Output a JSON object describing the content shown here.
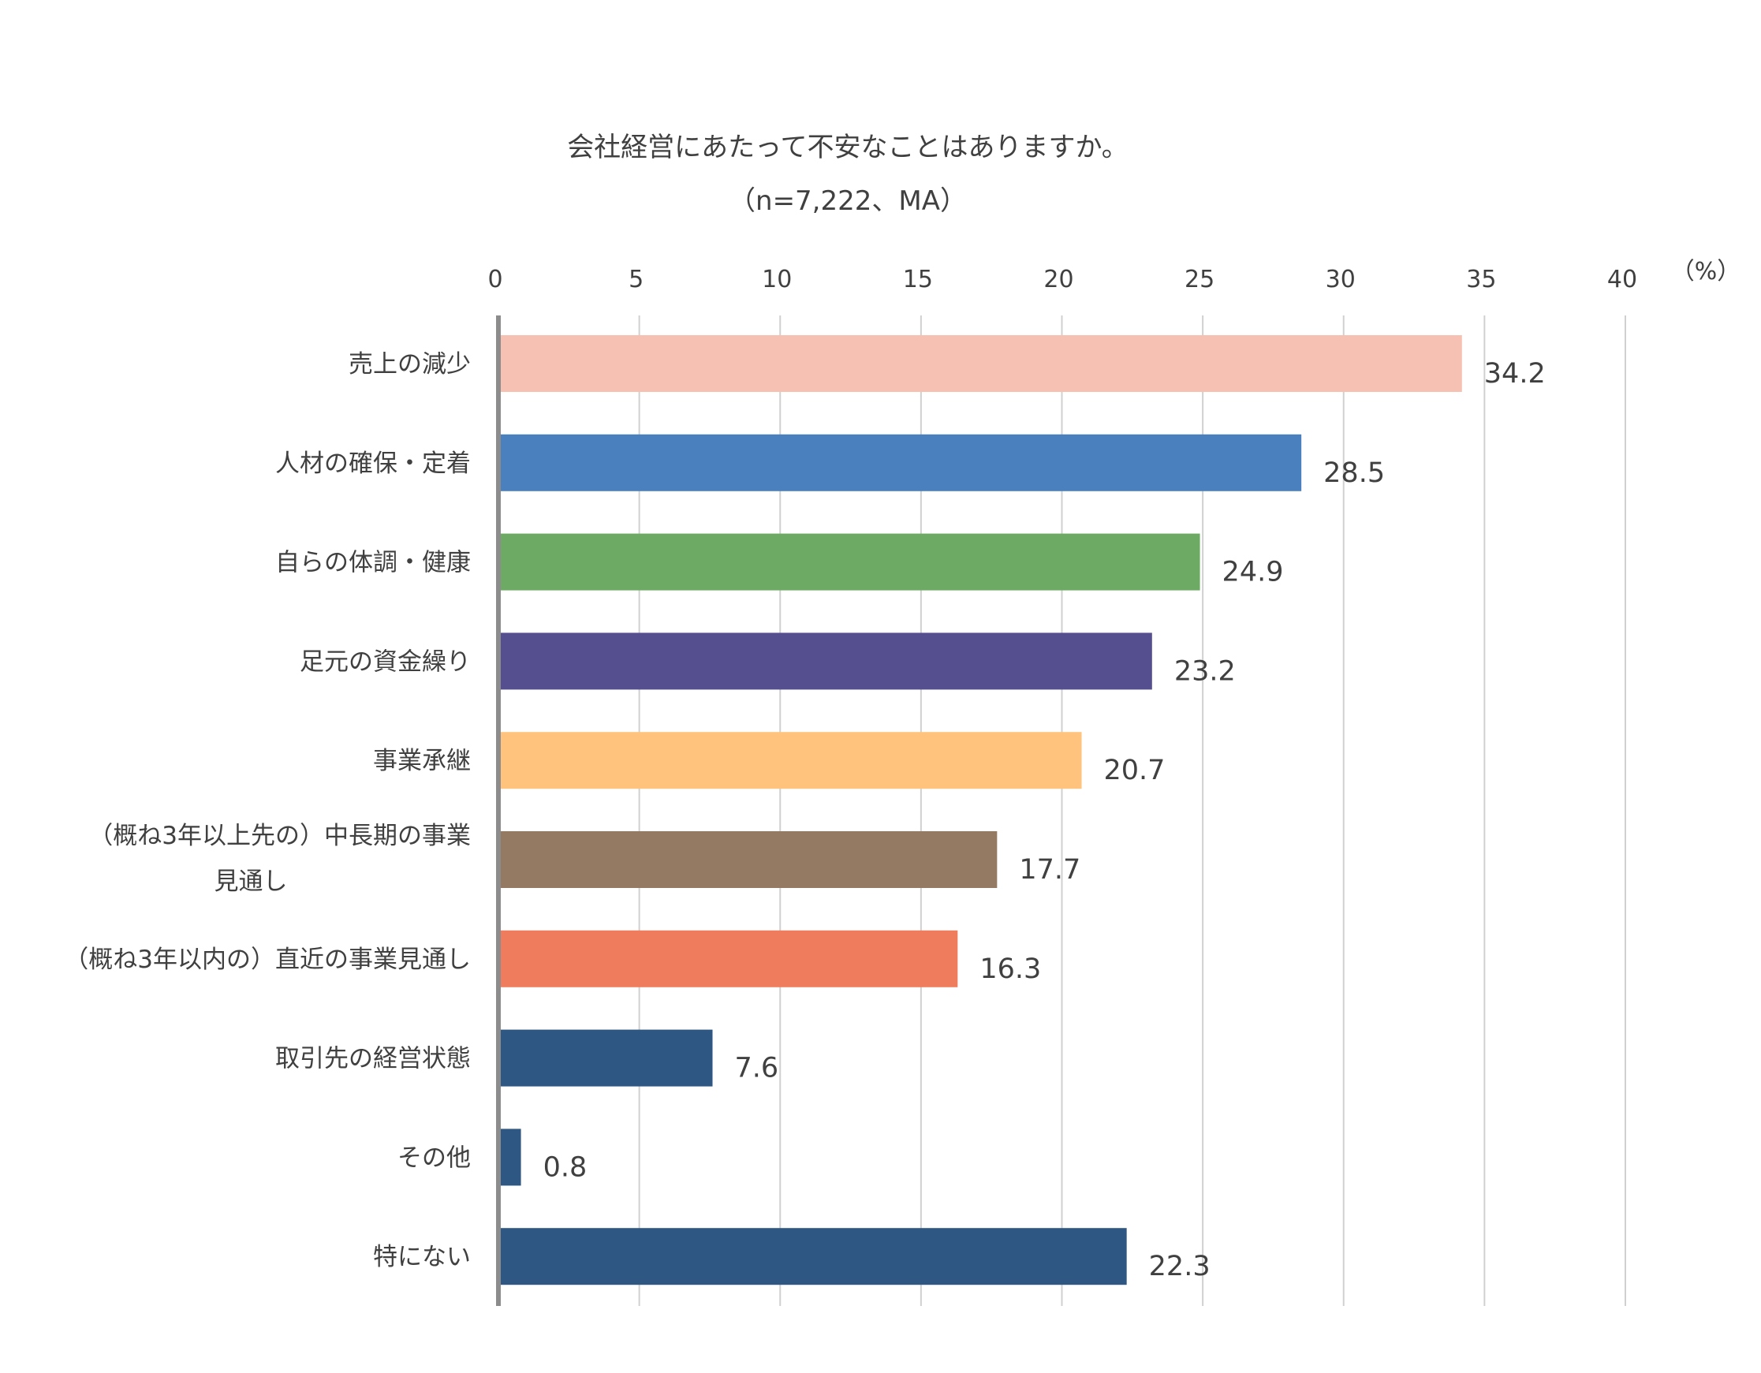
{
  "chart_data": {
    "type": "bar",
    "orientation": "horizontal",
    "title": "会社経営にあたって不安なことはありますか。",
    "subtitle": "（n=7,222、MA）",
    "unit_label": "（%）",
    "xlim": [
      0,
      40
    ],
    "ticks": [
      "0",
      "5",
      "10",
      "15",
      "20",
      "25",
      "30",
      "35",
      "40"
    ],
    "tick_values": [
      0,
      5,
      10,
      15,
      20,
      25,
      30,
      35,
      40
    ],
    "grid": true,
    "categories": [
      [
        "売上の減少"
      ],
      [
        "人材の確保・定着"
      ],
      [
        "自らの体調・健康"
      ],
      [
        "足元の資金繰り"
      ],
      [
        "事業承継"
      ],
      [
        "（概ね3年以上先の）中長期の事業",
        "見通し"
      ],
      [
        "（概ね3年以内の）直近の事業見通し"
      ],
      [
        "取引先の経営状態"
      ],
      [
        "その他"
      ],
      [
        "特にない"
      ]
    ],
    "values": [
      34.2,
      28.5,
      24.9,
      23.2,
      20.7,
      17.7,
      16.3,
      7.6,
      0.8,
      22.3
    ],
    "value_labels": [
      "34.2",
      "28.5",
      "24.9",
      "23.2",
      "20.7",
      "17.7",
      "16.3",
      "7.6",
      "0.8",
      "22.3"
    ],
    "colors": [
      "#F6C1B3",
      "#4A80BE",
      "#6DAA64",
      "#554E8F",
      "#FFC37D",
      "#957A63",
      "#EF7C5C",
      "#2E5883",
      "#2E5883",
      "#2E5883"
    ]
  }
}
